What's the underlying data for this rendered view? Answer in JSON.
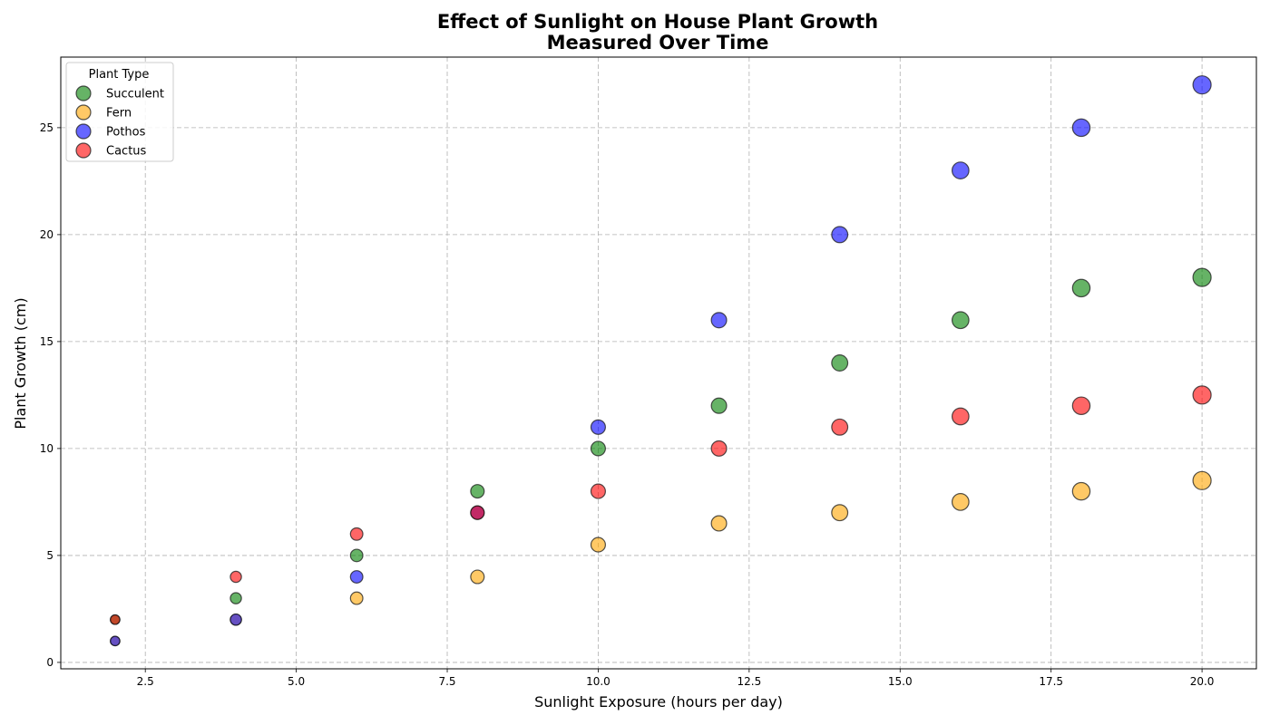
{
  "chart_data": {
    "type": "scatter",
    "title": "Effect of Sunlight on House Plant Growth",
    "subtitle": "Measured Over Time",
    "xlabel": "Sunlight Exposure (hours per day)",
    "ylabel": "Plant Growth (cm)",
    "xlim": [
      1.1,
      20.9
    ],
    "ylim": [
      -0.3,
      28.3
    ],
    "xticks": [
      2.5,
      5.0,
      7.5,
      10.0,
      12.5,
      15.0,
      17.5,
      20.0
    ],
    "xtick_labels": [
      "2.5",
      "5.0",
      "7.5",
      "10.0",
      "12.5",
      "15.0",
      "17.5",
      "20.0"
    ],
    "yticks": [
      0,
      5,
      10,
      15,
      20,
      25
    ],
    "ytick_labels": [
      "0",
      "5",
      "10",
      "15",
      "20",
      "25"
    ],
    "grid": true,
    "marker_size_encodes": "sunlight exposure",
    "point_alpha": 0.6,
    "legend": {
      "title": "Plant Type",
      "placement": "top-left"
    },
    "x": [
      2,
      4,
      6,
      8,
      10,
      12,
      14,
      16,
      18,
      20
    ],
    "series": [
      {
        "name": "Succulent",
        "color": "#008000",
        "y": [
          2,
          3,
          5,
          8,
          10,
          12,
          14,
          16,
          17.5,
          18
        ]
      },
      {
        "name": "Fern",
        "color": "#FFA500",
        "y": [
          1,
          2,
          3,
          4,
          5.5,
          6.5,
          7,
          7.5,
          8,
          8.5
        ]
      },
      {
        "name": "Pothos",
        "color": "#0000FF",
        "y": [
          1,
          2,
          4,
          7,
          11,
          16,
          20,
          23,
          25,
          27
        ]
      },
      {
        "name": "Cactus",
        "color": "#FF0000",
        "y": [
          2,
          4,
          6,
          7,
          8,
          10,
          11,
          11.5,
          12,
          12.5
        ]
      }
    ]
  }
}
